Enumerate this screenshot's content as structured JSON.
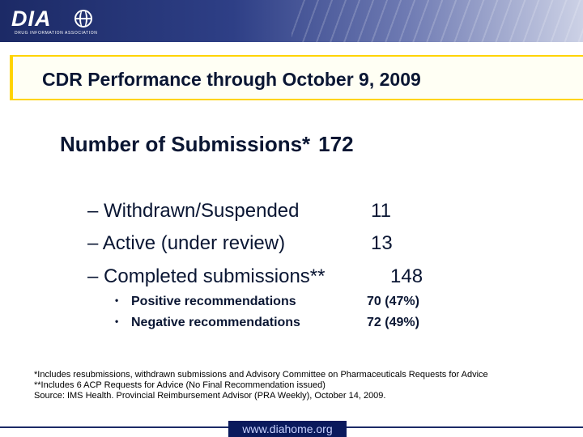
{
  "logo": {
    "mark": "DIA",
    "subtitle": "DRUG INFORMATION ASSOCIATION",
    "icon": "globe-icon"
  },
  "title": "CDR Performance through October 9, 2009",
  "submissions": {
    "label": "Number of Submissions*",
    "value": "172"
  },
  "breakdown": [
    {
      "label": "– Withdrawn/Suspended",
      "value": "11"
    },
    {
      "label": "– Active (under review)",
      "value": "13"
    },
    {
      "label": "– Completed submissions**",
      "value": "148"
    }
  ],
  "recommendations": [
    {
      "bullet": "•",
      "label": "Positive recommendations",
      "value": "70 (47%)"
    },
    {
      "bullet": "•",
      "label": "Negative recommendations",
      "value": "72 (49%)"
    }
  ],
  "notes": [
    "*Includes resubmissions, withdrawn submissions and Advisory Committee on Pharmaceuticals Requests for Advice",
    "**Includes 6 ACP Requests for Advice (No Final Recommendation issued)",
    "Source: IMS Health. Provincial Reimbursement Advisor (PRA Weekly), October 14, 2009."
  ],
  "footer": {
    "url": "www.diahome.org"
  },
  "colors": {
    "header_dark": "#1c2a66",
    "title_border": "#ffd400",
    "text": "#0a1633",
    "footer_bg": "#0a1a5c"
  }
}
